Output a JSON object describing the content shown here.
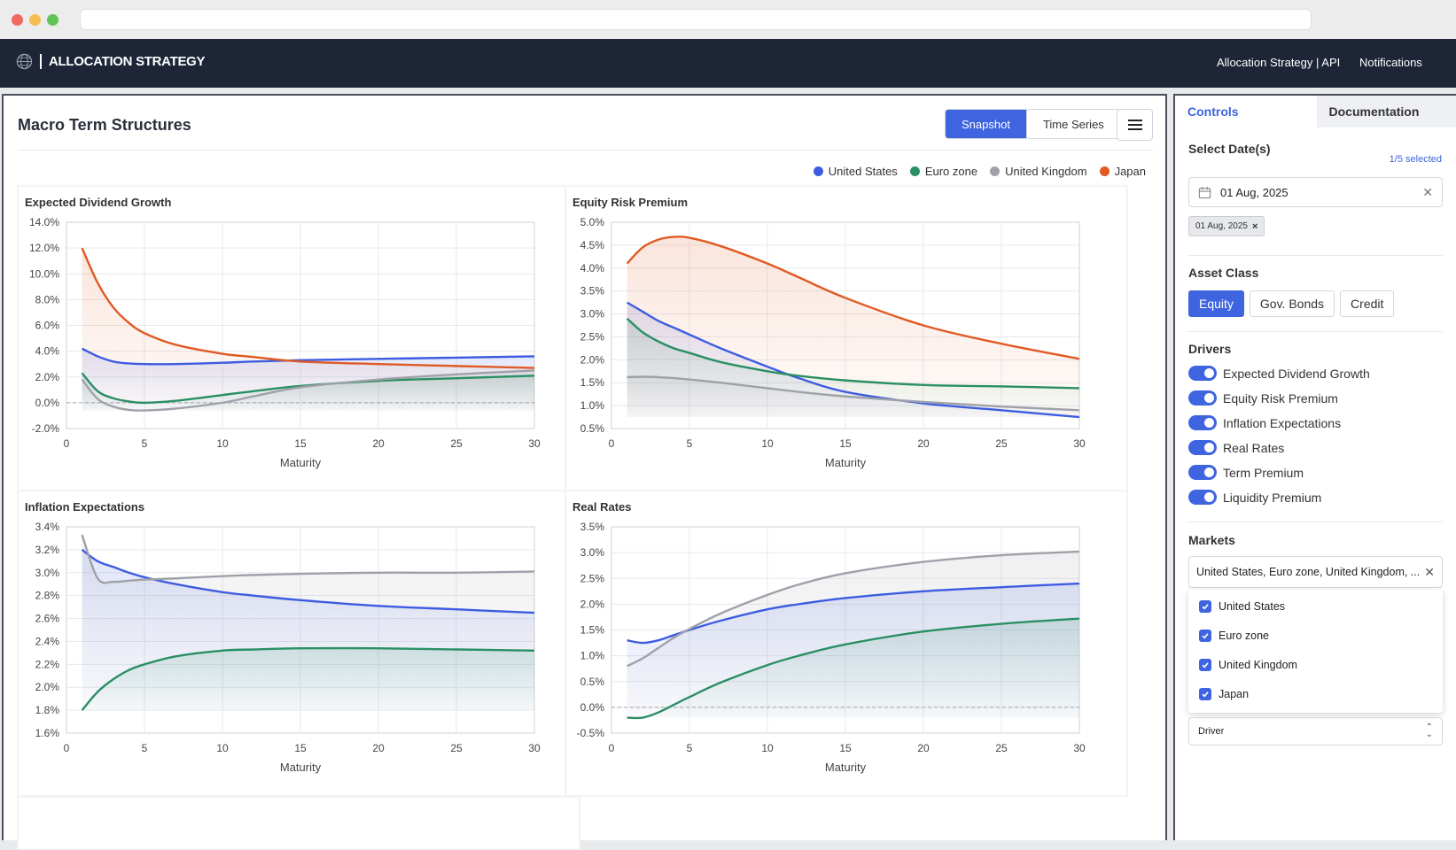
{
  "navbar": {
    "brand": "ALLOCATION STRATEGY",
    "links": [
      "Allocation Strategy | API",
      "Notifications"
    ]
  },
  "main": {
    "title": "Macro Term Structures",
    "view_options": [
      "Snapshot",
      "Time Series"
    ],
    "active_view": "Snapshot"
  },
  "legend": [
    {
      "name": "United States",
      "color": "#3d5ce0"
    },
    {
      "name": "Euro zone",
      "color": "#2a8f63"
    },
    {
      "name": "United Kingdom",
      "color": "#9fa1a9"
    },
    {
      "name": "Japan",
      "color": "#e05a23"
    }
  ],
  "chart_titles": [
    "Expected Dividend Growth",
    "Equity Risk Premium",
    "Inflation Expectations",
    "Real Rates"
  ],
  "chart_data": [
    {
      "type": "area",
      "title": "Expected Dividend Growth",
      "xlabel": "Maturity",
      "xlim": [
        0,
        30
      ],
      "ylim": [
        -2.0,
        14.0
      ],
      "yticks": [
        "-2.0%",
        "0.0%",
        "2.0%",
        "4.0%",
        "6.0%",
        "8.0%",
        "10.0%",
        "12.0%",
        "14.0%"
      ],
      "xticks": [
        "0",
        "5",
        "10",
        "15",
        "20",
        "25",
        "30"
      ],
      "x": [
        1,
        2,
        3,
        4,
        5,
        7,
        10,
        12,
        15,
        20,
        25,
        30
      ],
      "series": [
        {
          "name": "United States",
          "values": [
            4.2,
            3.6,
            3.2,
            3.05,
            3.0,
            3.0,
            3.1,
            3.2,
            3.3,
            3.4,
            3.5,
            3.6
          ]
        },
        {
          "name": "Euro zone",
          "values": [
            2.3,
            0.9,
            0.35,
            0.1,
            0.0,
            0.15,
            0.6,
            0.9,
            1.3,
            1.7,
            1.9,
            2.1
          ]
        },
        {
          "name": "United Kingdom",
          "values": [
            1.8,
            0.3,
            -0.3,
            -0.55,
            -0.6,
            -0.45,
            0.0,
            0.5,
            1.2,
            1.8,
            2.2,
            2.5
          ]
        },
        {
          "name": "Japan",
          "values": [
            12.0,
            9.3,
            7.4,
            6.2,
            5.4,
            4.5,
            3.8,
            3.55,
            3.2,
            3.0,
            2.85,
            2.7
          ]
        }
      ]
    },
    {
      "type": "area",
      "title": "Equity Risk Premium",
      "xlabel": "Maturity",
      "xlim": [
        0,
        30
      ],
      "ylim": [
        0.5,
        5.0
      ],
      "yticks": [
        "0.5%",
        "1.0%",
        "1.5%",
        "2.0%",
        "2.5%",
        "3.0%",
        "3.5%",
        "4.0%",
        "4.5%",
        "5.0%"
      ],
      "xticks": [
        "0",
        "5",
        "10",
        "15",
        "20",
        "25",
        "30"
      ],
      "x": [
        1,
        2,
        3,
        4,
        5,
        7,
        10,
        12,
        15,
        20,
        25,
        30
      ],
      "series": [
        {
          "name": "United States",
          "values": [
            3.25,
            3.05,
            2.85,
            2.7,
            2.55,
            2.25,
            1.85,
            1.6,
            1.3,
            1.05,
            0.9,
            0.75
          ]
        },
        {
          "name": "Euro zone",
          "values": [
            2.9,
            2.6,
            2.4,
            2.25,
            2.15,
            1.95,
            1.75,
            1.65,
            1.55,
            1.45,
            1.42,
            1.38
          ]
        },
        {
          "name": "United Kingdom",
          "values": [
            1.62,
            1.63,
            1.62,
            1.6,
            1.57,
            1.5,
            1.38,
            1.3,
            1.2,
            1.08,
            0.98,
            0.9
          ]
        },
        {
          "name": "Japan",
          "values": [
            4.1,
            4.45,
            4.62,
            4.68,
            4.66,
            4.48,
            4.1,
            3.8,
            3.35,
            2.75,
            2.35,
            2.02
          ]
        }
      ]
    },
    {
      "type": "area",
      "title": "Inflation Expectations",
      "xlabel": "Maturity",
      "xlim": [
        0,
        30
      ],
      "ylim": [
        1.6,
        3.4
      ],
      "yticks": [
        "1.6%",
        "1.8%",
        "2.0%",
        "2.2%",
        "2.4%",
        "2.6%",
        "2.8%",
        "3.0%",
        "3.2%",
        "3.4%"
      ],
      "xticks": [
        "0",
        "5",
        "10",
        "15",
        "20",
        "25",
        "30"
      ],
      "x": [
        1,
        2,
        3,
        4,
        5,
        7,
        10,
        12,
        15,
        20,
        25,
        30
      ],
      "series": [
        {
          "name": "United States",
          "values": [
            3.2,
            3.1,
            3.05,
            3.0,
            2.96,
            2.9,
            2.83,
            2.8,
            2.76,
            2.71,
            2.68,
            2.65
          ]
        },
        {
          "name": "Euro zone",
          "values": [
            1.8,
            1.96,
            2.07,
            2.15,
            2.2,
            2.27,
            2.32,
            2.33,
            2.34,
            2.34,
            2.33,
            2.32
          ]
        },
        {
          "name": "United Kingdom",
          "values": [
            3.33,
            2.95,
            2.92,
            2.93,
            2.94,
            2.95,
            2.97,
            2.98,
            2.99,
            3.0,
            3.0,
            3.01
          ]
        }
      ]
    },
    {
      "type": "area",
      "title": "Real Rates",
      "xlabel": "Maturity",
      "xlim": [
        0,
        30
      ],
      "ylim": [
        -0.5,
        3.5
      ],
      "yticks": [
        "-0.5%",
        "0.0%",
        "0.5%",
        "1.0%",
        "1.5%",
        "2.0%",
        "2.5%",
        "3.0%",
        "3.5%"
      ],
      "xticks": [
        "0",
        "5",
        "10",
        "15",
        "20",
        "25",
        "30"
      ],
      "x": [
        1,
        2,
        3,
        4,
        5,
        7,
        10,
        12,
        15,
        20,
        25,
        30
      ],
      "series": [
        {
          "name": "United States",
          "values": [
            1.3,
            1.25,
            1.3,
            1.4,
            1.5,
            1.68,
            1.9,
            2.0,
            2.12,
            2.25,
            2.33,
            2.4
          ]
        },
        {
          "name": "Euro zone",
          "values": [
            -0.2,
            -0.2,
            -0.1,
            0.05,
            0.2,
            0.48,
            0.82,
            1.0,
            1.22,
            1.47,
            1.62,
            1.72
          ]
        },
        {
          "name": "United Kingdom",
          "values": [
            0.8,
            0.95,
            1.15,
            1.35,
            1.52,
            1.82,
            2.18,
            2.38,
            2.6,
            2.82,
            2.95,
            3.02
          ]
        }
      ]
    }
  ],
  "side": {
    "tabs": [
      "Controls",
      "Documentation"
    ],
    "select_dates_label": "Select Date(s)",
    "selected_count": "1/5 selected",
    "date_value": "01 Aug, 2025",
    "date_chip": "01 Aug, 2025",
    "asset_class_label": "Asset Class",
    "asset_classes": [
      "Equity",
      "Gov. Bonds",
      "Credit"
    ],
    "active_asset_class": "Equity",
    "drivers_label": "Drivers",
    "drivers": [
      "Expected Dividend Growth",
      "Equity Risk Premium",
      "Inflation Expectations",
      "Real Rates",
      "Term Premium",
      "Liquidity Premium"
    ],
    "markets_label": "Markets",
    "markets_value": "United States, Euro zone, United Kingdom, ...",
    "market_options": [
      "United States",
      "Euro zone",
      "United Kingdom",
      "Japan"
    ],
    "group_by_value": "Driver"
  }
}
